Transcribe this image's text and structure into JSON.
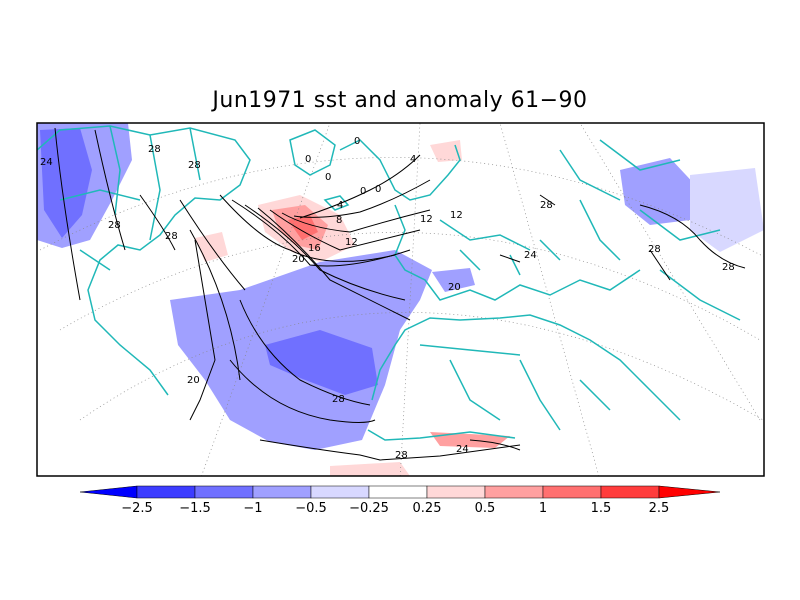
{
  "title": "Jun1971 sst and anomaly 61-90",
  "contour_labels": [
    "24",
    "28",
    "28",
    "28",
    "28",
    "0",
    "0",
    "0",
    "0",
    "4",
    "0",
    "4",
    "8",
    "12",
    "12",
    "12",
    "16",
    "20",
    "20",
    "24",
    "28",
    "20",
    "28",
    "28",
    "24",
    "28",
    "28"
  ],
  "colorbar": {
    "labels": [
      "-2.5",
      "-1.5",
      "-1",
      "-0.5",
      "-0.25",
      "0.25",
      "0.5",
      "1",
      "1.5",
      "2.5"
    ],
    "colors": [
      "#0000ff",
      "#3c3cff",
      "#7070ff",
      "#a0a0ff",
      "#d8d8ff",
      "#ffffff",
      "#ffd8d8",
      "#ffa0a0",
      "#ff7070",
      "#ff3c3c",
      "#ff0000"
    ]
  },
  "colors": {
    "coast": "#20b8b8",
    "contour": "#000000",
    "grid": "#888888"
  }
}
